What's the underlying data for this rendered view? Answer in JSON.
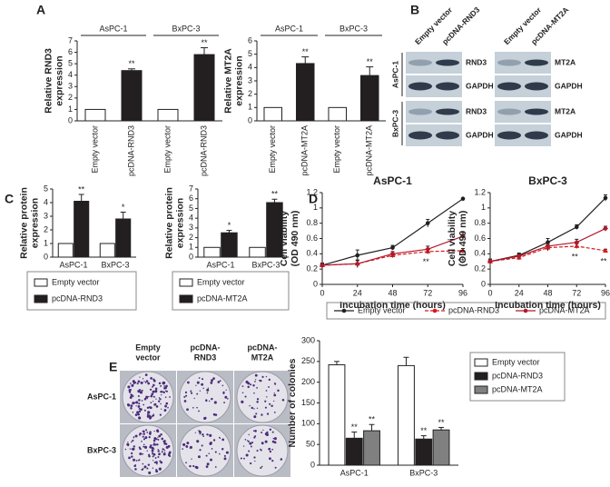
{
  "figure": {
    "panels": [
      "A",
      "B",
      "C",
      "D",
      "E"
    ],
    "blot": {
      "columns": [
        [
          "Empty vector",
          "pcDNA-RND3"
        ],
        [
          "Empty vector",
          "pcDNA-MT2A"
        ]
      ],
      "rows": [
        [
          "RND3",
          "MT2A"
        ],
        [
          "GAPDH",
          "GAPDH"
        ],
        [
          "RND3",
          "MT2A"
        ],
        [
          "GAPDH",
          "GAPDH"
        ]
      ],
      "cell_lines": [
        "AsPC-1",
        "BxPC-3"
      ]
    },
    "colony": {
      "columns": [
        [
          "Empty",
          "vector"
        ],
        [
          "pcDNA-",
          "RND3"
        ],
        [
          "pcDNA-",
          "MT2A"
        ]
      ],
      "rows": [
        "AsPC-1",
        "BxPC-3"
      ]
    }
  },
  "chart_data": [
    {
      "type": "bar",
      "ylabel": [
        "Relative RND3",
        "expression"
      ],
      "categories": [
        "Empty vector",
        "pcDNA-RND3",
        "Empty vector",
        "pcDNA-RND3"
      ],
      "groups": [
        "AsPC-1",
        "BxPC-3"
      ],
      "values": [
        1,
        4.4,
        1,
        5.8
      ],
      "errors": [
        null,
        0.15,
        null,
        0.6
      ],
      "value_annotations": [
        null,
        "**",
        null,
        "**"
      ],
      "colors": [
        "#ffffff",
        "#231f20",
        "#ffffff",
        "#231f20"
      ],
      "ylim": [
        0,
        7
      ],
      "yticks": [
        0,
        1,
        2,
        3,
        4,
        5,
        6,
        7
      ]
    },
    {
      "type": "bar",
      "ylabel": [
        "Relative MT2A",
        "expression"
      ],
      "categories": [
        "Empty vector",
        "pcDNA-MT2A",
        "Empty vector",
        "pcDNA-MT2A"
      ],
      "groups": [
        "AsPC-1",
        "BxPC-3"
      ],
      "values": [
        1,
        4.3,
        1,
        3.4
      ],
      "errors": [
        null,
        0.5,
        null,
        0.65
      ],
      "value_annotations": [
        null,
        "**",
        null,
        "**"
      ],
      "colors": [
        "#ffffff",
        "#231f20",
        "#ffffff",
        "#231f20"
      ],
      "ylim": [
        0,
        6
      ],
      "yticks": [
        0,
        1,
        2,
        3,
        4,
        5,
        6
      ]
    },
    {
      "type": "bar",
      "ylabel": [
        "Relative protein",
        "expression"
      ],
      "categories": [
        "AsPC-1",
        "BxPC-3"
      ],
      "legend": "below",
      "series": [
        {
          "name": "Empty vector",
          "color": "#ffffff",
          "values": [
            1,
            1
          ]
        },
        {
          "name": "pcDNA-RND3",
          "color": "#231f20",
          "values": [
            4.1,
            2.8
          ],
          "errors": [
            0.5,
            0.5
          ],
          "value_annotations": [
            "**",
            "*"
          ]
        }
      ],
      "ylim": [
        0,
        5
      ],
      "yticks": [
        0,
        1,
        2,
        3,
        4,
        5
      ]
    },
    {
      "type": "bar",
      "ylabel": [
        "Relative protein",
        "expression"
      ],
      "categories": [
        "AsPC-1",
        "BxPC-3"
      ],
      "legend": "below",
      "series": [
        {
          "name": "Empty vector",
          "color": "#ffffff",
          "values": [
            1,
            1
          ]
        },
        {
          "name": "pcDNA-MT2A",
          "color": "#231f20",
          "values": [
            2.5,
            5.6
          ],
          "errors": [
            0.25,
            0.35
          ],
          "value_annotations": [
            "*",
            "**"
          ]
        }
      ],
      "ylim": [
        0,
        7
      ],
      "yticks": [
        0,
        1,
        2,
        3,
        4,
        5,
        6,
        7
      ]
    },
    {
      "type": "line",
      "title": "AsPC-1",
      "xlabel": "Incubation time (hours)",
      "ylabel": [
        "Cell viability",
        "(OD 490 nm)"
      ],
      "legend": "below",
      "x": [
        0,
        24,
        48,
        72,
        96
      ],
      "xlim": [
        0,
        96
      ],
      "xticks": [
        0,
        24,
        48,
        72,
        96
      ],
      "series": [
        {
          "name": "Empty vector",
          "color": "#231f20",
          "marker": "circle",
          "values": [
            0.25,
            0.38,
            0.48,
            0.8,
            1.12
          ],
          "errors": [
            0.03,
            0.07,
            0.03,
            0.05,
            0.01
          ]
        },
        {
          "name": "pcDNA-RND3",
          "color": "#d7191c",
          "marker": "triangle",
          "dashed": true,
          "values": [
            0.25,
            0.27,
            0.38,
            0.43,
            0.44
          ],
          "errors": [
            0.02,
            0.05,
            0.03,
            0.03,
            0.03
          ],
          "point_labels": [
            null,
            null,
            null,
            "**",
            "**"
          ]
        },
        {
          "name": "pcDNA-MT2A",
          "color": "#b2182b",
          "marker": "diamond",
          "values": [
            0.25,
            0.27,
            0.4,
            0.46,
            0.63
          ],
          "errors": [
            0.02,
            0.04,
            0.03,
            0.04,
            0.05
          ]
        }
      ],
      "ylim": [
        0,
        1.2
      ],
      "yticks": [
        0,
        0.2,
        0.4,
        0.6,
        0.8,
        1,
        1.2
      ]
    },
    {
      "type": "line",
      "title": "BxPC-3",
      "xlabel": "Incubation time (hours)",
      "ylabel": [
        "Cell viability",
        "(OD 490 nm)"
      ],
      "x": [
        0,
        24,
        48,
        72,
        96
      ],
      "xlim": [
        0,
        96
      ],
      "xticks": [
        0,
        24,
        48,
        72,
        96
      ],
      "series": [
        {
          "color": "#231f20",
          "marker": "circle",
          "values": [
            0.3,
            0.38,
            0.55,
            0.75,
            1.13
          ],
          "errors": [
            0.03,
            0.03,
            0.05,
            0.03,
            0.04
          ]
        },
        {
          "color": "#d7191c",
          "marker": "triangle",
          "dashed": true,
          "values": [
            0.3,
            0.35,
            0.48,
            0.5,
            0.44
          ],
          "errors": [
            0.03,
            0.03,
            0.04,
            0.03,
            0.02
          ],
          "point_labels": [
            null,
            null,
            null,
            "**",
            "**"
          ]
        },
        {
          "color": "#b2182b",
          "marker": "diamond",
          "values": [
            0.3,
            0.37,
            0.5,
            0.55,
            0.73
          ],
          "errors": [
            0.03,
            0.03,
            0.04,
            0.04,
            0.03
          ]
        }
      ],
      "ylim": [
        0,
        1.2
      ],
      "yticks": [
        0,
        0.2,
        0.4,
        0.6,
        0.8,
        1,
        1.2
      ]
    },
    {
      "type": "bar",
      "ylabel": [
        "Number of colonies"
      ],
      "categories": [
        "AsPC-1",
        "BxPC-3"
      ],
      "legend": "right",
      "series": [
        {
          "name": "Empty vector",
          "color": "#ffffff",
          "values": [
            242,
            240
          ],
          "errors": [
            8,
            20
          ]
        },
        {
          "name": "pcDNA-RND3",
          "color": "#231f20",
          "values": [
            65,
            63
          ],
          "errors": [
            15,
            8
          ],
          "value_annotations": [
            "**",
            "**"
          ]
        },
        {
          "name": "pcDNA-MT2A",
          "color": "#808080",
          "values": [
            83,
            85
          ],
          "errors": [
            15,
            6
          ],
          "value_annotations": [
            "**",
            "**"
          ]
        }
      ],
      "ylim": [
        0,
        300
      ],
      "yticks": [
        0,
        50,
        100,
        150,
        200,
        250,
        300
      ]
    }
  ]
}
